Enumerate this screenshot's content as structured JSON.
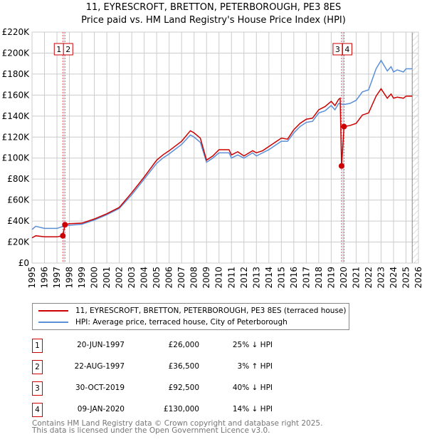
{
  "chart_data": {
    "type": "line",
    "title": "11, EYRESCROFT, BRETTON, PETERBOROUGH, PE3 8ES",
    "subtitle": "Price paid vs. HM Land Registry's House Price Index (HPI)",
    "xlim": [
      1995,
      2026
    ],
    "ylim": [
      0,
      220000
    ],
    "x_ticks": [
      "1995",
      "1996",
      "1997",
      "1998",
      "1999",
      "2000",
      "2001",
      "2002",
      "2003",
      "2004",
      "2005",
      "2006",
      "2007",
      "2008",
      "2009",
      "2010",
      "2011",
      "2012",
      "2013",
      "2014",
      "2015",
      "2016",
      "2017",
      "2018",
      "2019",
      "2020",
      "2021",
      "2022",
      "2023",
      "2024",
      "2025",
      "2026"
    ],
    "y_ticks": [
      {
        "v": 0,
        "label": "£0"
      },
      {
        "v": 20000,
        "label": "£20K"
      },
      {
        "v": 40000,
        "label": "£40K"
      },
      {
        "v": 60000,
        "label": "£60K"
      },
      {
        "v": 80000,
        "label": "£80K"
      },
      {
        "v": 100000,
        "label": "£100K"
      },
      {
        "v": 120000,
        "label": "£120K"
      },
      {
        "v": 140000,
        "label": "£140K"
      },
      {
        "v": 160000,
        "label": "£160K"
      },
      {
        "v": 180000,
        "label": "£180K"
      },
      {
        "v": 200000,
        "label": "£200K"
      },
      {
        "v": 220000,
        "label": "£220K"
      }
    ],
    "grid": true,
    "projection_start": 2025.5,
    "series": [
      {
        "name": "11, EYRESCROFT, BRETTON, PETERBOROUGH, PE3 8ES (terraced house)",
        "color": "#cc0000",
        "points": [
          [
            1995,
            24
          ],
          [
            1995.3,
            26
          ],
          [
            1996,
            25
          ],
          [
            1997,
            25
          ],
          [
            1997.47,
            26
          ],
          [
            1997.64,
            36.5
          ],
          [
            1998,
            37.5
          ],
          [
            1999,
            38
          ],
          [
            2000,
            42
          ],
          [
            2001,
            47
          ],
          [
            2002,
            53
          ],
          [
            2003,
            67
          ],
          [
            2004,
            82
          ],
          [
            2005,
            98
          ],
          [
            2005.5,
            103
          ],
          [
            2006,
            107
          ],
          [
            2007,
            116
          ],
          [
            2007.7,
            126
          ],
          [
            2008,
            124
          ],
          [
            2008.5,
            119
          ],
          [
            2009,
            98
          ],
          [
            2009.5,
            102
          ],
          [
            2010,
            108
          ],
          [
            2010.8,
            108
          ],
          [
            2011,
            103
          ],
          [
            2011.5,
            106
          ],
          [
            2012,
            102
          ],
          [
            2012.7,
            107
          ],
          [
            2013,
            105
          ],
          [
            2013.5,
            107
          ],
          [
            2014,
            111
          ],
          [
            2014.5,
            115
          ],
          [
            2015,
            119
          ],
          [
            2015.5,
            118
          ],
          [
            2016,
            127
          ],
          [
            2016.5,
            133
          ],
          [
            2017,
            137
          ],
          [
            2017.5,
            138
          ],
          [
            2018,
            146
          ],
          [
            2018.5,
            149
          ],
          [
            2019,
            154
          ],
          [
            2019.3,
            150
          ],
          [
            2019.6,
            156
          ],
          [
            2019.72,
            157
          ],
          [
            2019.83,
            92.5
          ],
          [
            2020.03,
            130
          ],
          [
            2020.5,
            131
          ],
          [
            2021,
            133
          ],
          [
            2021.5,
            141
          ],
          [
            2022,
            143
          ],
          [
            2022.3,
            151
          ],
          [
            2022.6,
            159
          ],
          [
            2023,
            166
          ],
          [
            2023.5,
            157
          ],
          [
            2023.8,
            161
          ],
          [
            2024,
            157
          ],
          [
            2024.3,
            158
          ],
          [
            2024.8,
            157
          ],
          [
            2025,
            159
          ],
          [
            2025.5,
            159
          ]
        ]
      },
      {
        "name": "HPI: Average price, terraced house, City of Peterborough",
        "color": "#5b8fd6",
        "points": [
          [
            1995,
            32
          ],
          [
            1995.3,
            35
          ],
          [
            1996,
            33
          ],
          [
            1997,
            33
          ],
          [
            1997.5,
            35
          ],
          [
            1998,
            36
          ],
          [
            1999,
            37
          ],
          [
            2000,
            41
          ],
          [
            2001,
            46
          ],
          [
            2002,
            52
          ],
          [
            2003,
            65
          ],
          [
            2004,
            80
          ],
          [
            2005,
            95
          ],
          [
            2005.5,
            100
          ],
          [
            2006,
            104
          ],
          [
            2007,
            113
          ],
          [
            2007.7,
            122
          ],
          [
            2008,
            120
          ],
          [
            2008.5,
            115
          ],
          [
            2009,
            96
          ],
          [
            2009.5,
            100
          ],
          [
            2010,
            105
          ],
          [
            2010.8,
            105
          ],
          [
            2011,
            100
          ],
          [
            2011.5,
            103
          ],
          [
            2012,
            100
          ],
          [
            2012.7,
            105
          ],
          [
            2013,
            102
          ],
          [
            2013.5,
            105
          ],
          [
            2014,
            108
          ],
          [
            2014.5,
            112
          ],
          [
            2015,
            116
          ],
          [
            2015.5,
            116
          ],
          [
            2016,
            124
          ],
          [
            2016.5,
            130
          ],
          [
            2017,
            134
          ],
          [
            2017.5,
            135
          ],
          [
            2018,
            143
          ],
          [
            2018.5,
            145
          ],
          [
            2019,
            150
          ],
          [
            2019.3,
            146
          ],
          [
            2019.6,
            152
          ],
          [
            2020,
            151
          ],
          [
            2020.5,
            152
          ],
          [
            2021,
            155
          ],
          [
            2021.5,
            163
          ],
          [
            2022,
            165
          ],
          [
            2022.3,
            175
          ],
          [
            2022.6,
            185
          ],
          [
            2023,
            193
          ],
          [
            2023.5,
            183
          ],
          [
            2023.8,
            187
          ],
          [
            2024,
            182
          ],
          [
            2024.3,
            184
          ],
          [
            2024.8,
            182
          ],
          [
            2025,
            185
          ],
          [
            2025.5,
            185
          ]
        ]
      }
    ],
    "sales": [
      {
        "id": "1",
        "date": "20-JUN-1997",
        "x": 1997.47,
        "price": 26000,
        "price_label": "£26,000",
        "hpi": "25% ↓ HPI"
      },
      {
        "id": "2",
        "date": "22-AUG-1997",
        "x": 1997.64,
        "price": 36500,
        "price_label": "£36,500",
        "hpi": "3% ↑ HPI"
      },
      {
        "id": "3",
        "date": "30-OCT-2019",
        "x": 2019.83,
        "price": 92500,
        "price_label": "£92,500",
        "hpi": "40% ↓ HPI"
      },
      {
        "id": "4",
        "date": "09-JAN-2020",
        "x": 2020.03,
        "price": 130000,
        "price_label": "£130,000",
        "hpi": "14% ↓ HPI"
      }
    ]
  },
  "legend": {
    "red": "11, EYRESCROFT, BRETTON, PETERBOROUGH, PE3 8ES (terraced house)",
    "blue": "HPI: Average price, terraced house, City of Peterborough"
  },
  "footer": {
    "line1": "Contains HM Land Registry data © Crown copyright and database right 2025.",
    "line2": "This data is licensed under the Open Government Licence v3.0."
  }
}
